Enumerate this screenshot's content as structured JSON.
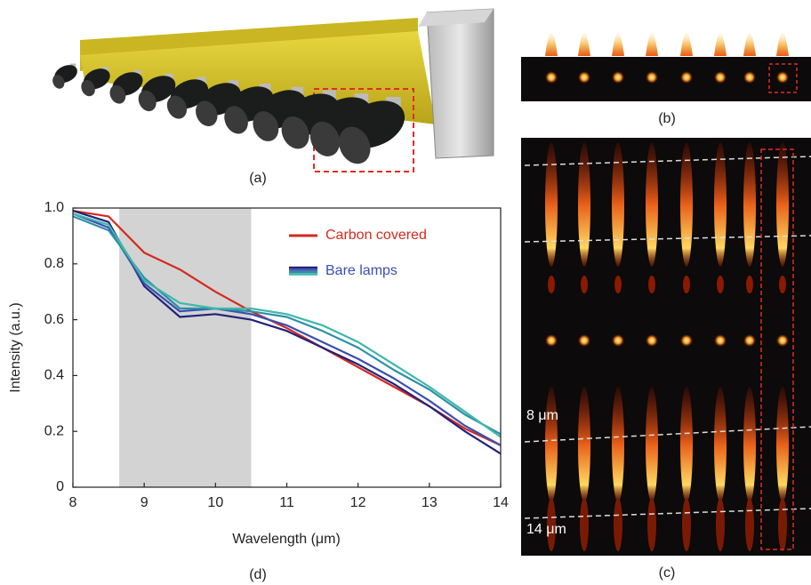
{
  "panels": {
    "a": "(a)",
    "b": "(b)",
    "c": "(c)",
    "d": "(d)",
    "c_top_label": "8 μm",
    "c_bottom_label": "14 μm"
  },
  "chart_data": {
    "type": "line",
    "xlabel": "Wavelength (μm)",
    "ylabel": "Intensity (a.u.)",
    "xlim": [
      8,
      14
    ],
    "ylim": [
      0,
      1
    ],
    "xticks": [
      8,
      9,
      10,
      11,
      12,
      13,
      14
    ],
    "yticks": [
      0,
      0.2,
      0.4,
      0.6,
      0.8,
      {
        "value": 1,
        "label": "1.0"
      }
    ],
    "shaded_region": [
      8.65,
      10.5
    ],
    "shaded_color": "#d3d3d3",
    "x": [
      8,
      8.5,
      9,
      9.5,
      10,
      10.5,
      11,
      11.5,
      12,
      12.5,
      13,
      13.5,
      14
    ],
    "series": [
      {
        "name": "Carbon covered",
        "color": "#d42a1e",
        "values": [
          0.99,
          0.97,
          0.84,
          0.78,
          0.7,
          0.63,
          0.57,
          0.5,
          0.43,
          0.36,
          0.29,
          0.21,
          0.15
        ]
      },
      {
        "name": "Bare lamps",
        "colors": [
          "#22237a",
          "#3a4fb0",
          "#2e8fa8",
          "#3fb8a8"
        ],
        "values": [
          [
            0.99,
            0.95,
            0.72,
            0.61,
            0.62,
            0.6,
            0.56,
            0.5,
            0.44,
            0.37,
            0.29,
            0.2,
            0.12
          ],
          [
            0.98,
            0.93,
            0.73,
            0.63,
            0.64,
            0.62,
            0.58,
            0.52,
            0.46,
            0.39,
            0.31,
            0.22,
            0.15
          ],
          [
            0.97,
            0.92,
            0.75,
            0.64,
            0.64,
            0.63,
            0.61,
            0.56,
            0.5,
            0.42,
            0.35,
            0.26,
            0.19
          ],
          [
            0.98,
            0.94,
            0.74,
            0.66,
            0.64,
            0.64,
            0.62,
            0.58,
            0.52,
            0.44,
            0.36,
            0.27,
            0.18
          ]
        ]
      }
    ]
  }
}
